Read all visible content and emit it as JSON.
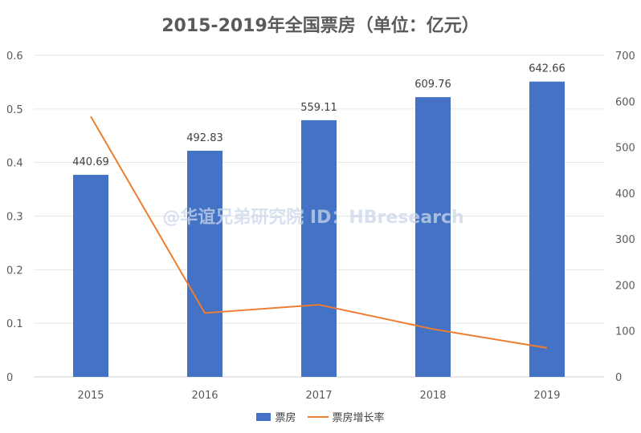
{
  "chart_data": {
    "type": "bar",
    "title": "2015-2019年全国票房（单位：亿元）",
    "categories": [
      "2015",
      "2016",
      "2017",
      "2018",
      "2019"
    ],
    "series": [
      {
        "name": "票房",
        "type": "bar",
        "axis": "left",
        "values": [
          0.377,
          0.422,
          0.479,
          0.522,
          0.551
        ],
        "data_labels": [
          "440.69",
          "492.83",
          "559.11",
          "609.76",
          "642.66"
        ],
        "color": "#4472c4"
      },
      {
        "name": "票房增长率",
        "type": "line",
        "axis": "right",
        "values": [
          567,
          139,
          157,
          104,
          63
        ],
        "color": "#ed7d31"
      }
    ],
    "left_axis": {
      "ylim": [
        0,
        0.6
      ],
      "ticks": [
        "0",
        "0.1",
        "0.2",
        "0.3",
        "0.4",
        "0.5",
        "0.6"
      ]
    },
    "right_axis": {
      "ylim": [
        0,
        700
      ],
      "ticks": [
        "0",
        "100",
        "200",
        "300",
        "400",
        "500",
        "600",
        "700"
      ]
    },
    "grid": true,
    "legend_position": "bottom",
    "watermark": "@华谊兄弟研究院 ID：HBresearch"
  }
}
